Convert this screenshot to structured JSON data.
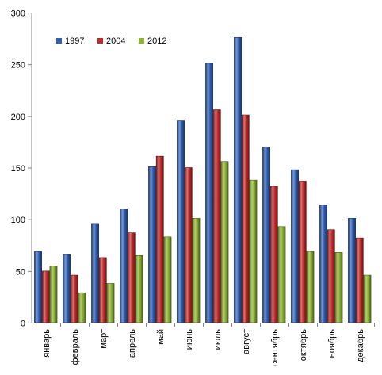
{
  "chart_data": {
    "type": "bar",
    "title": "",
    "xlabel": "",
    "ylabel": "",
    "ylim": [
      0,
      300
    ],
    "yticks": [
      0,
      50,
      100,
      150,
      200,
      250,
      300
    ],
    "grid": false,
    "legend_position": "top-left",
    "categories": [
      "январь",
      "февраль",
      "март",
      "апрель",
      "май",
      "июнь",
      "июль",
      "август",
      "сентябрь",
      "октябрь",
      "ноябрь",
      "декабрь"
    ],
    "series": [
      {
        "name": "1997",
        "color": "#2f5fb6",
        "values": [
          69,
          66,
          96,
          110,
          151,
          196,
          251,
          276,
          170,
          148,
          114,
          101
        ]
      },
      {
        "name": "2004",
        "color": "#c22a2a",
        "values": [
          50,
          46,
          63,
          87,
          161,
          150,
          206,
          201,
          132,
          137,
          90,
          82
        ]
      },
      {
        "name": "2012",
        "color": "#8cb431",
        "values": [
          55,
          29,
          38,
          65,
          83,
          101,
          156,
          138,
          93,
          69,
          68,
          46
        ]
      }
    ]
  }
}
